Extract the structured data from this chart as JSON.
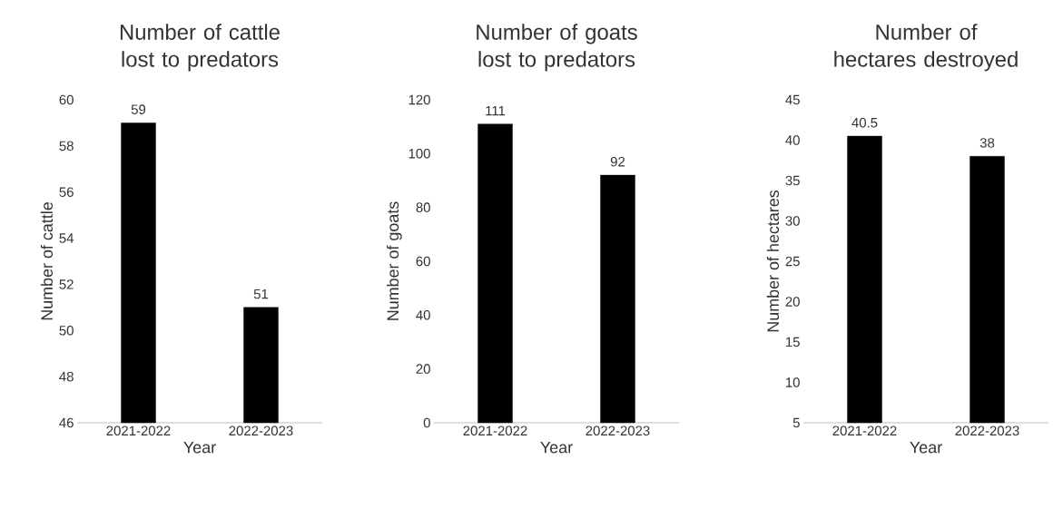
{
  "chart_data": [
    {
      "type": "bar",
      "title": "Number of cattle lost to predators",
      "xlabel": "Year",
      "ylabel": "Number of cattle",
      "categories": [
        "2021-2022",
        "2022-2023"
      ],
      "values": [
        59,
        51
      ],
      "color": "#000000",
      "ylim": [
        46,
        60
      ],
      "yticks": [
        46,
        48,
        50,
        52,
        54,
        56,
        58,
        60
      ],
      "data_labels": true
    },
    {
      "type": "bar",
      "title": "Number of goats lost to predators",
      "xlabel": "Year",
      "ylabel": "Number of goats",
      "categories": [
        "2021-2022",
        "2022-2023"
      ],
      "values": [
        111,
        92
      ],
      "color": "#000000",
      "ylim": [
        0,
        120
      ],
      "yticks": [
        0,
        20,
        40,
        60,
        80,
        100,
        120
      ],
      "data_labels": true
    },
    {
      "type": "bar",
      "title": "Number of hectares destroyed",
      "xlabel": "Year",
      "ylabel": "Number of hectares",
      "categories": [
        "2021-2022",
        "2022-2023"
      ],
      "values": [
        40.5,
        38
      ],
      "color": "#000000",
      "ylim": [
        5,
        45
      ],
      "yticks": [
        5,
        10,
        15,
        20,
        25,
        30,
        35,
        40,
        45
      ],
      "data_labels": true
    }
  ]
}
